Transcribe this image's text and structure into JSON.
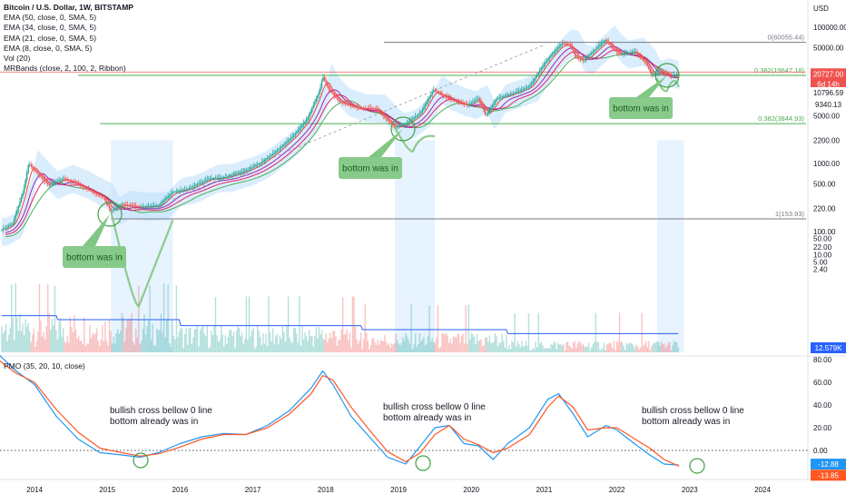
{
  "header": {
    "symbol_line": "Bitcoin / U.S. Dollar, 1W, BITSTAMP",
    "indicators": [
      "EMA (50, close, 0, SMA, 5)",
      "EMA (34, close, 0, SMA, 5)",
      "EMA (21, close, 0, SMA, 5)",
      "EMA (8, close, 0, SMA, 5)",
      "Vol (20)",
      "MRBands (close, 2, 100, 2, Ribbon)"
    ],
    "currency": "USD"
  },
  "pmo_legend": "PMO (35, 20, 10, close)",
  "price_badges": {
    "last_price": "20727.00",
    "countdown": "6d 14h",
    "band_upper": "10796.59",
    "band_lower": "9340.13",
    "volume": "12.579K",
    "pmo_value": "-12.88",
    "pmo_signal": "-13.85"
  },
  "colors": {
    "up": "#26a69a",
    "down": "#ef5350",
    "ema50": "#4caf50",
    "ema34": "#e91e63",
    "ema21": "#9c27b0",
    "ema8": "#f44336",
    "volume_ma": "#2962ff",
    "pmo": "#2196f3",
    "pmo_signal": "#ff5722",
    "annotation": "#81c784",
    "band_fill": "#bbdefb"
  },
  "chart_data": [
    {
      "type": "candlestick",
      "title": "Bitcoin / U.S. Dollar, 1W, BITSTAMP",
      "y_scale": "log",
      "ylabel": "USD",
      "x_ticks": [
        "2014",
        "2015",
        "2016",
        "2017",
        "2018",
        "2019",
        "2020",
        "2021",
        "2022",
        "2023",
        "2024"
      ],
      "y_ticks": [
        "100000.00",
        "50000.00",
        "20000.00",
        "5000.00",
        "2200.00",
        "1000.00",
        "500.00",
        "220.00",
        "100.00",
        "50.00",
        "22.00",
        "10.00",
        "5.00",
        "2.40"
      ],
      "price_path": [
        [
          2013.5,
          100
        ],
        [
          2013.7,
          130
        ],
        [
          2013.85,
          400
        ],
        [
          2013.92,
          1000
        ],
        [
          2014.0,
          800
        ],
        [
          2014.1,
          620
        ],
        [
          2014.2,
          480
        ],
        [
          2014.4,
          600
        ],
        [
          2014.6,
          500
        ],
        [
          2014.8,
          380
        ],
        [
          2014.95,
          320
        ],
        [
          2015.05,
          200
        ],
        [
          2015.2,
          250
        ],
        [
          2015.45,
          230
        ],
        [
          2015.7,
          240
        ],
        [
          2015.9,
          380
        ],
        [
          2016.1,
          420
        ],
        [
          2016.4,
          600
        ],
        [
          2016.6,
          620
        ],
        [
          2016.9,
          780
        ],
        [
          2017.1,
          1000
        ],
        [
          2017.35,
          1600
        ],
        [
          2017.55,
          2500
        ],
        [
          2017.75,
          4500
        ],
        [
          2017.92,
          12000
        ],
        [
          2017.96,
          19000
        ],
        [
          2018.05,
          12000
        ],
        [
          2018.2,
          8000
        ],
        [
          2018.45,
          6500
        ],
        [
          2018.7,
          6400
        ],
        [
          2018.88,
          4000
        ],
        [
          2018.96,
          3400
        ],
        [
          2019.1,
          3800
        ],
        [
          2019.3,
          5500
        ],
        [
          2019.48,
          12000
        ],
        [
          2019.6,
          10000
        ],
        [
          2019.8,
          8000
        ],
        [
          2019.95,
          7200
        ],
        [
          2020.1,
          9000
        ],
        [
          2020.2,
          5000
        ],
        [
          2020.35,
          9000
        ],
        [
          2020.6,
          11000
        ],
        [
          2020.8,
          13500
        ],
        [
          2020.96,
          25000
        ],
        [
          2021.1,
          40000
        ],
        [
          2021.25,
          58000
        ],
        [
          2021.35,
          56000
        ],
        [
          2021.45,
          35000
        ],
        [
          2021.55,
          33000
        ],
        [
          2021.7,
          47000
        ],
        [
          2021.85,
          66000
        ],
        [
          2021.95,
          48000
        ],
        [
          2022.05,
          40000
        ],
        [
          2022.25,
          44000
        ],
        [
          2022.4,
          30000
        ],
        [
          2022.48,
          20000
        ],
        [
          2022.6,
          22000
        ],
        [
          2022.75,
          19500
        ],
        [
          2022.85,
          20727
        ]
      ],
      "fibonacci_levels": [
        {
          "label": "0(60055.44)",
          "value": 60055.44
        },
        {
          "label": "0.382(19647.18)",
          "value": 19647.18
        },
        {
          "label": "0.382(3844.93)",
          "value": 3844.93
        },
        {
          "label": "1(153.93)",
          "value": 153.93
        }
      ],
      "annotations": [
        {
          "text": "bottom was in",
          "x": 2015.1,
          "price": 200
        },
        {
          "text": "bottom was in",
          "x": 2018.95,
          "price": 3400
        },
        {
          "text": "bottom was in",
          "x": 2022.45,
          "price": 19500
        }
      ],
      "current_price": 20727.0
    },
    {
      "type": "line",
      "title": "PMO (35, 20, 10, close)",
      "y_ticks": [
        "80.00",
        "60.00",
        "40.00",
        "20.00",
        "0.00"
      ],
      "ylim": [
        -20,
        85
      ],
      "series": [
        {
          "points": [
            [
              2013.5,
              85
            ],
            [
              2013.75,
              70
            ],
            [
              2014.0,
              58
            ],
            [
              2014.3,
              30
            ],
            [
              2014.6,
              10
            ],
            [
              2014.9,
              -2
            ],
            [
              2015.2,
              -4
            ],
            [
              2015.45,
              -6
            ],
            [
              2015.7,
              -2
            ],
            [
              2016.0,
              6
            ],
            [
              2016.3,
              12
            ],
            [
              2016.6,
              15
            ],
            [
              2016.9,
              14
            ],
            [
              2017.2,
              22
            ],
            [
              2017.5,
              35
            ],
            [
              2017.8,
              55
            ],
            [
              2017.96,
              70
            ],
            [
              2018.1,
              58
            ],
            [
              2018.35,
              30
            ],
            [
              2018.6,
              12
            ],
            [
              2018.85,
              -6
            ],
            [
              2019.1,
              -12
            ],
            [
              2019.3,
              4
            ],
            [
              2019.5,
              20
            ],
            [
              2019.7,
              22
            ],
            [
              2019.9,
              6
            ],
            [
              2020.1,
              4
            ],
            [
              2020.3,
              -8
            ],
            [
              2020.5,
              6
            ],
            [
              2020.8,
              20
            ],
            [
              2021.05,
              45
            ],
            [
              2021.2,
              50
            ],
            [
              2021.4,
              32
            ],
            [
              2021.6,
              12
            ],
            [
              2021.85,
              22
            ],
            [
              2022.0,
              18
            ],
            [
              2022.2,
              8
            ],
            [
              2022.45,
              -4
            ],
            [
              2022.65,
              -12
            ],
            [
              2022.85,
              -12.88
            ]
          ]
        },
        {
          "points": [
            [
              2013.5,
              80
            ],
            [
              2013.75,
              68
            ],
            [
              2014.0,
              60
            ],
            [
              2014.3,
              36
            ],
            [
              2014.6,
              16
            ],
            [
              2014.9,
              2
            ],
            [
              2015.2,
              -2
            ],
            [
              2015.45,
              -5
            ],
            [
              2015.7,
              -3
            ],
            [
              2016.0,
              3
            ],
            [
              2016.3,
              10
            ],
            [
              2016.6,
              14
            ],
            [
              2016.9,
              14
            ],
            [
              2017.2,
              20
            ],
            [
              2017.5,
              32
            ],
            [
              2017.8,
              50
            ],
            [
              2017.96,
              66
            ],
            [
              2018.1,
              62
            ],
            [
              2018.35,
              38
            ],
            [
              2018.6,
              18
            ],
            [
              2018.85,
              -1
            ],
            [
              2019.1,
              -10
            ],
            [
              2019.3,
              -2
            ],
            [
              2019.5,
              14
            ],
            [
              2019.7,
              22
            ],
            [
              2019.9,
              10
            ],
            [
              2020.1,
              5
            ],
            [
              2020.3,
              -2
            ],
            [
              2020.5,
              2
            ],
            [
              2020.8,
              14
            ],
            [
              2021.05,
              38
            ],
            [
              2021.2,
              48
            ],
            [
              2021.4,
              38
            ],
            [
              2021.6,
              18
            ],
            [
              2021.85,
              20
            ],
            [
              2022.0,
              20
            ],
            [
              2022.2,
              12
            ],
            [
              2022.45,
              2
            ],
            [
              2022.65,
              -8
            ],
            [
              2022.85,
              -13.85
            ]
          ]
        }
      ],
      "annotations": [
        {
          "text": "bullish cross bellow 0 line\nbottom already was in",
          "x": 2015.45
        },
        {
          "text": "bullish cross bellow 0 line\nbottom already was in",
          "x": 2019.1
        },
        {
          "text": "bullish cross bellow 0 line\nbottom already was in",
          "x": 2022.85
        }
      ]
    }
  ]
}
